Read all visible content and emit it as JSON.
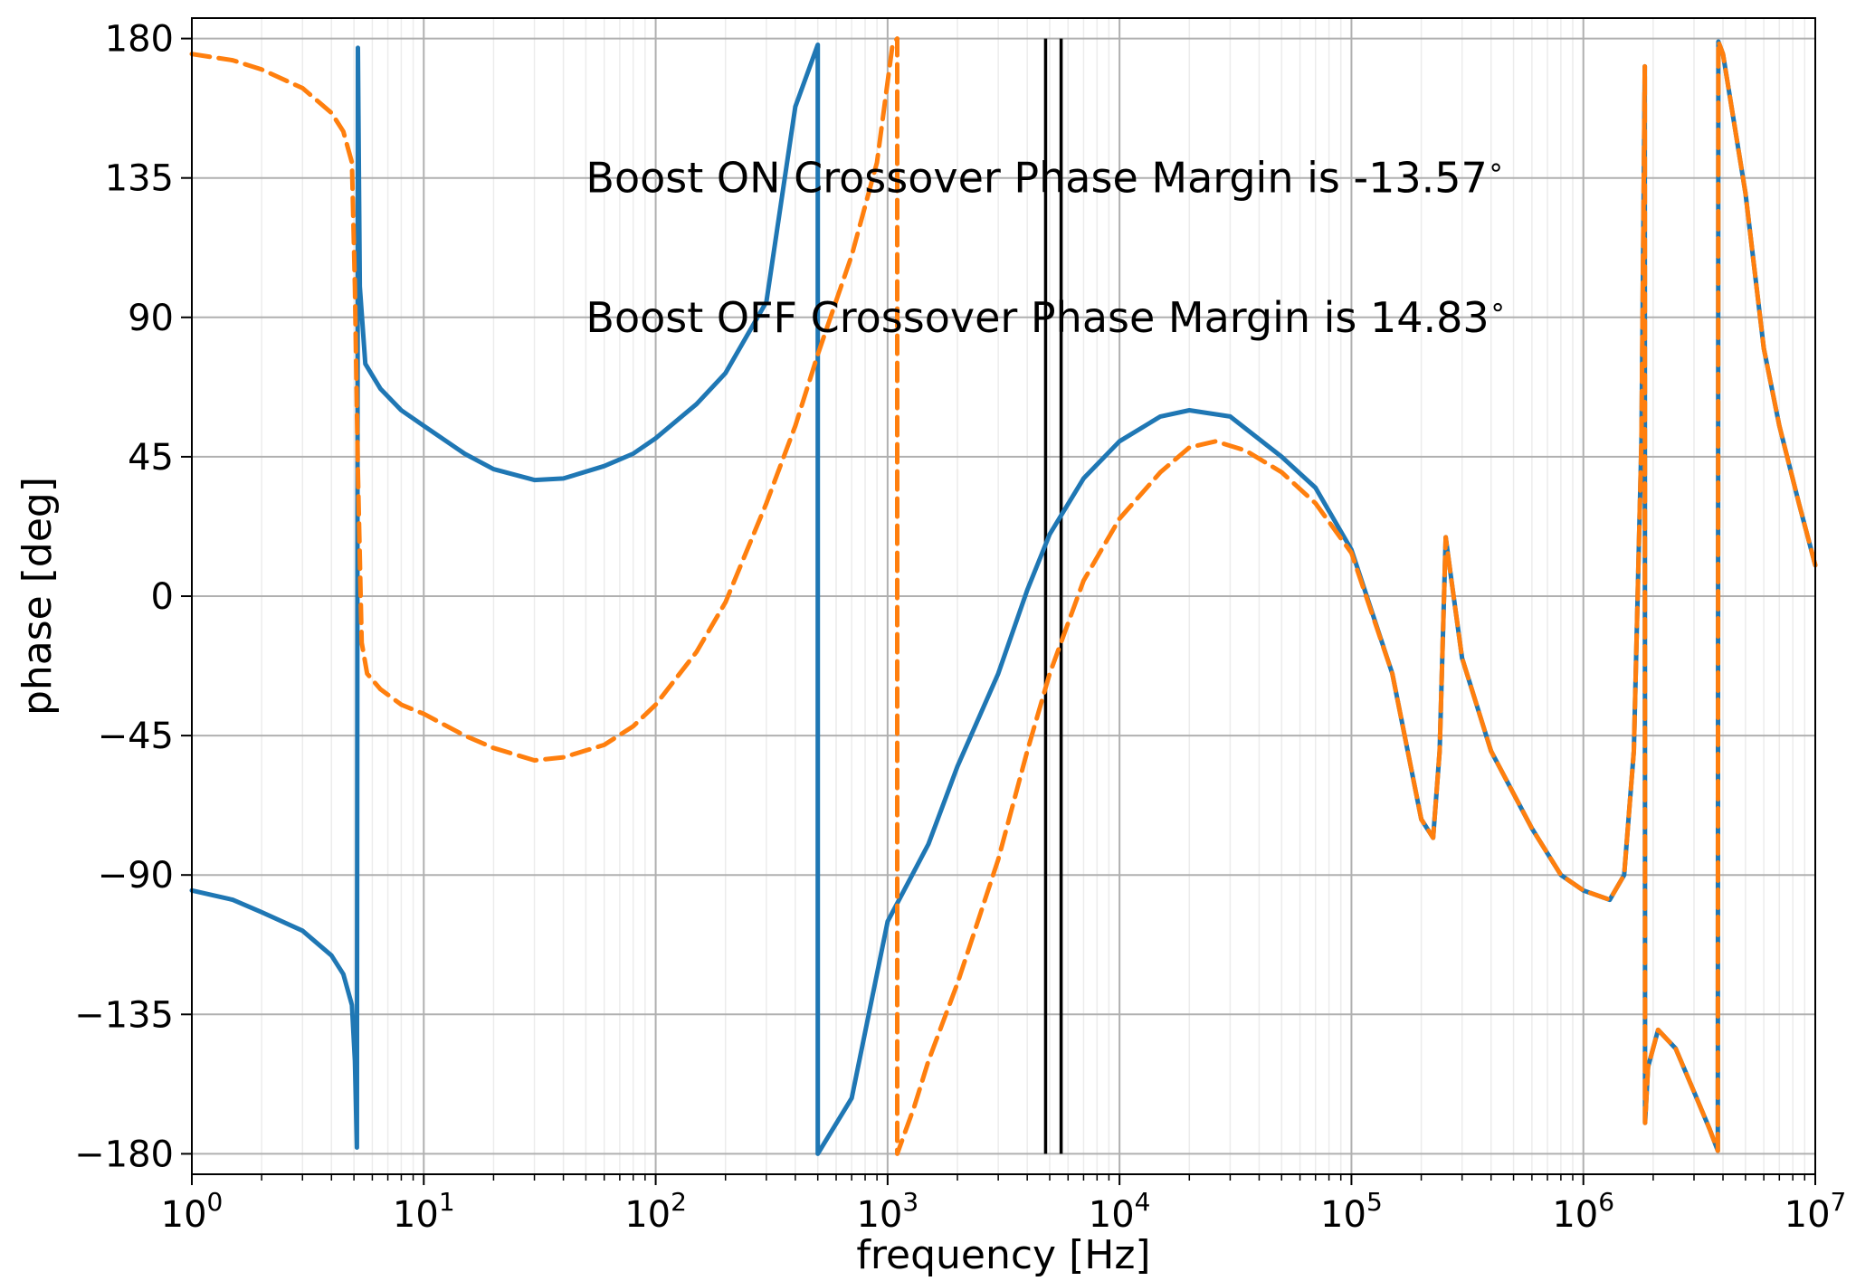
{
  "chart_data": {
    "type": "line",
    "xlabel": "frequency [Hz]",
    "ylabel": "phase [deg]",
    "xscale": "log",
    "xlim": [
      1,
      10000000
    ],
    "ylim": [
      -180,
      180
    ],
    "grid": true,
    "x_tick_labels": [
      {
        "base": "10",
        "exp": "0"
      },
      {
        "base": "10",
        "exp": "1"
      },
      {
        "base": "10",
        "exp": "2"
      },
      {
        "base": "10",
        "exp": "3"
      },
      {
        "base": "10",
        "exp": "4"
      },
      {
        "base": "10",
        "exp": "5"
      },
      {
        "base": "10",
        "exp": "6"
      },
      {
        "base": "10",
        "exp": "7"
      }
    ],
    "y_ticks": [
      180,
      135,
      90,
      45,
      0,
      -45,
      -90,
      -135,
      -180
    ],
    "y_tick_labels": [
      "180",
      "135",
      "90",
      "45",
      "0",
      "−45",
      "−90",
      "−135",
      "−180"
    ],
    "annotations": [
      {
        "text": "Boost ON Crossover Phase Margin is -13.57",
        "degree_symbol": "∘",
        "x": 50,
        "y": 135
      },
      {
        "text": "Boost OFF Crossover Phase Margin is 14.83",
        "degree_symbol": "∘",
        "x": 50,
        "y": 90
      }
    ],
    "vlines": [
      4800,
      5600
    ],
    "series": [
      {
        "color": "#1f77b4",
        "style": "solid",
        "points": [
          [
            1,
            -95
          ],
          [
            1.5,
            -98
          ],
          [
            2,
            -102
          ],
          [
            3,
            -108
          ],
          [
            4,
            -116
          ],
          [
            4.5,
            -122
          ],
          [
            4.9,
            -132
          ],
          [
            5.05,
            -150
          ],
          [
            5.15,
            -178
          ],
          [
            5.2,
            177
          ],
          [
            5.3,
            100
          ],
          [
            5.6,
            75
          ],
          [
            6.5,
            67
          ],
          [
            8,
            60
          ],
          [
            10,
            55
          ],
          [
            15,
            46
          ],
          [
            20,
            41
          ],
          [
            30,
            37.5
          ],
          [
            40,
            38
          ],
          [
            60,
            42
          ],
          [
            80,
            46
          ],
          [
            100,
            51
          ],
          [
            150,
            62
          ],
          [
            200,
            72
          ],
          [
            300,
            95
          ],
          [
            400,
            158
          ],
          [
            500,
            178
          ],
          [
            500,
            -180
          ],
          [
            700,
            -162
          ],
          [
            1000,
            -105
          ],
          [
            1500,
            -80
          ],
          [
            2000,
            -55
          ],
          [
            3000,
            -25
          ],
          [
            4000,
            2
          ],
          [
            5000,
            20
          ],
          [
            7000,
            38
          ],
          [
            10000,
            50
          ],
          [
            15000,
            58
          ],
          [
            20000,
            60
          ],
          [
            30000,
            58
          ],
          [
            50000,
            45
          ],
          [
            70000,
            35
          ],
          [
            100000,
            15
          ],
          [
            150000,
            -25
          ],
          [
            200000,
            -72
          ],
          [
            225000,
            -78
          ],
          [
            240000,
            -50
          ],
          [
            255000,
            19
          ],
          [
            270000,
            5
          ],
          [
            300000,
            -20
          ],
          [
            400000,
            -50
          ],
          [
            600000,
            -75
          ],
          [
            800000,
            -90
          ],
          [
            1000000,
            -95
          ],
          [
            1300000,
            -98
          ],
          [
            1500000,
            -90
          ],
          [
            1650000,
            -50
          ],
          [
            1780000,
            50
          ],
          [
            1840000,
            171
          ],
          [
            1845000,
            -170
          ],
          [
            1900000,
            -152
          ],
          [
            2100000,
            -140
          ],
          [
            2500000,
            -146
          ],
          [
            3000000,
            -160
          ],
          [
            3500000,
            -172
          ],
          [
            3800000,
            -179
          ],
          [
            3820000,
            179
          ],
          [
            4000000,
            175
          ],
          [
            5000000,
            130
          ],
          [
            6000000,
            80
          ],
          [
            7000000,
            55
          ],
          [
            8500000,
            30
          ],
          [
            10000000,
            10
          ]
        ]
      },
      {
        "color": "#ff7f0e",
        "style": "dashed",
        "points": [
          [
            1,
            175
          ],
          [
            1.5,
            173
          ],
          [
            2,
            170
          ],
          [
            3,
            164
          ],
          [
            4,
            156
          ],
          [
            4.5,
            150
          ],
          [
            4.9,
            140
          ],
          [
            5.05,
            100
          ],
          [
            5.2,
            40
          ],
          [
            5.4,
            -15
          ],
          [
            5.7,
            -25
          ],
          [
            6.5,
            -30
          ],
          [
            8,
            -35
          ],
          [
            10,
            -38
          ],
          [
            15,
            -45
          ],
          [
            20,
            -49
          ],
          [
            30,
            -53
          ],
          [
            40,
            -52
          ],
          [
            60,
            -48
          ],
          [
            80,
            -42
          ],
          [
            100,
            -35
          ],
          [
            150,
            -18
          ],
          [
            200,
            -2
          ],
          [
            300,
            30
          ],
          [
            400,
            55
          ],
          [
            500,
            78
          ],
          [
            700,
            110
          ],
          [
            900,
            140
          ],
          [
            1050,
            178
          ],
          [
            1100,
            180
          ],
          [
            1100,
            -180
          ],
          [
            1300,
            -165
          ],
          [
            1500,
            -150
          ],
          [
            2000,
            -125
          ],
          [
            3000,
            -85
          ],
          [
            4000,
            -50
          ],
          [
            5000,
            -25
          ],
          [
            7000,
            5
          ],
          [
            10000,
            25
          ],
          [
            15000,
            40
          ],
          [
            20000,
            48
          ],
          [
            26000,
            50
          ],
          [
            35000,
            47
          ],
          [
            50000,
            40
          ],
          [
            70000,
            30
          ],
          [
            100000,
            14
          ],
          [
            150000,
            -25
          ],
          [
            200000,
            -72
          ],
          [
            225000,
            -78
          ],
          [
            240000,
            -50
          ],
          [
            255000,
            19
          ],
          [
            270000,
            5
          ],
          [
            300000,
            -20
          ],
          [
            400000,
            -50
          ],
          [
            600000,
            -75
          ],
          [
            800000,
            -90
          ],
          [
            1000000,
            -95
          ],
          [
            1300000,
            -98
          ],
          [
            1500000,
            -90
          ],
          [
            1650000,
            -50
          ],
          [
            1780000,
            50
          ],
          [
            1840000,
            171
          ],
          [
            1845000,
            -170
          ],
          [
            1900000,
            -152
          ],
          [
            2100000,
            -140
          ],
          [
            2500000,
            -146
          ],
          [
            3000000,
            -160
          ],
          [
            3500000,
            -172
          ],
          [
            3800000,
            -179
          ],
          [
            3820000,
            179
          ],
          [
            4000000,
            175
          ],
          [
            5000000,
            130
          ],
          [
            6000000,
            80
          ],
          [
            7000000,
            55
          ],
          [
            8500000,
            30
          ],
          [
            10000000,
            10
          ]
        ]
      }
    ]
  }
}
